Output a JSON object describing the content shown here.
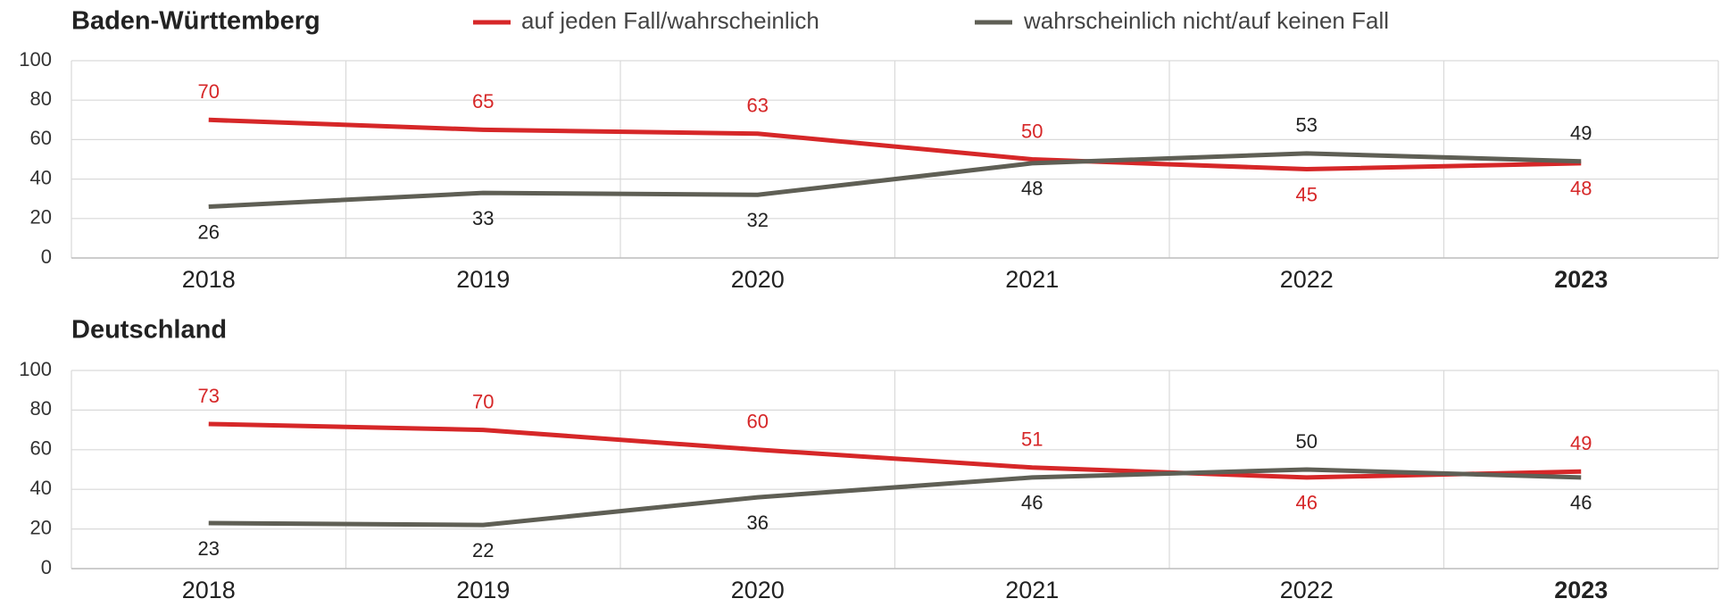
{
  "chart_data": [
    {
      "type": "line",
      "title": "Baden-Württemberg",
      "categories": [
        "2018",
        "2019",
        "2020",
        "2021",
        "2022",
        "2023"
      ],
      "series": [
        {
          "name": "auf jeden Fall/wahrscheinlich",
          "color": "#d62728",
          "values": [
            70,
            65,
            63,
            50,
            45,
            48
          ]
        },
        {
          "name": "wahrscheinlich nicht/auf keinen Fall",
          "color": "#5f5f55",
          "values": [
            26,
            33,
            32,
            48,
            53,
            49
          ]
        }
      ],
      "ylim": [
        0,
        100
      ],
      "yticks": [
        0,
        20,
        40,
        60,
        80,
        100
      ],
      "grid": true
    },
    {
      "type": "line",
      "title": "Deutschland",
      "categories": [
        "2018",
        "2019",
        "2020",
        "2021",
        "2022",
        "2023"
      ],
      "series": [
        {
          "color": "#d62728",
          "values": [
            73,
            70,
            60,
            51,
            46,
            49
          ]
        },
        {
          "color": "#5f5f55",
          "values": [
            23,
            22,
            36,
            46,
            50,
            46
          ]
        }
      ],
      "ylim": [
        0,
        100
      ],
      "yticks": [
        0,
        20,
        40,
        60,
        80,
        100
      ],
      "grid": true
    }
  ]
}
